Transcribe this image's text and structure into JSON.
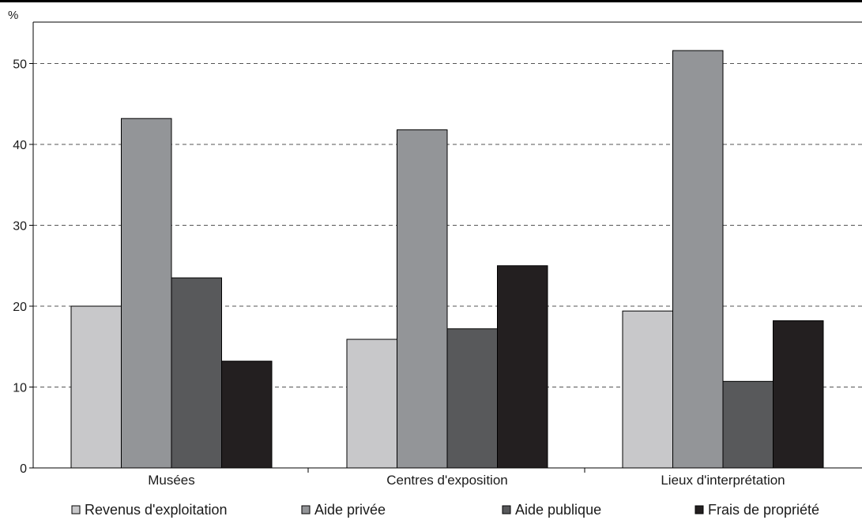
{
  "chart_data": {
    "type": "bar",
    "y_unit": "%",
    "categories": [
      "Musées",
      "Centres d'exposition",
      "Lieux d'interprétation"
    ],
    "series": [
      {
        "name": "Revenus d'exploitation",
        "color": "#c8c8ca",
        "values": [
          20.0,
          15.9,
          19.4
        ]
      },
      {
        "name": "Aide privée",
        "color": "#939598",
        "values": [
          43.2,
          41.8,
          51.6
        ]
      },
      {
        "name": "Aide publique",
        "color": "#58595b",
        "values": [
          23.5,
          17.2,
          10.7
        ]
      },
      {
        "name": "Frais de propriété",
        "color": "#231f20",
        "values": [
          13.2,
          25.0,
          18.2
        ]
      }
    ],
    "yticks": [
      0,
      10,
      20,
      30,
      40,
      50
    ],
    "ylim": [
      0,
      55
    ],
    "grid": true,
    "legend_position": "bottom"
  }
}
